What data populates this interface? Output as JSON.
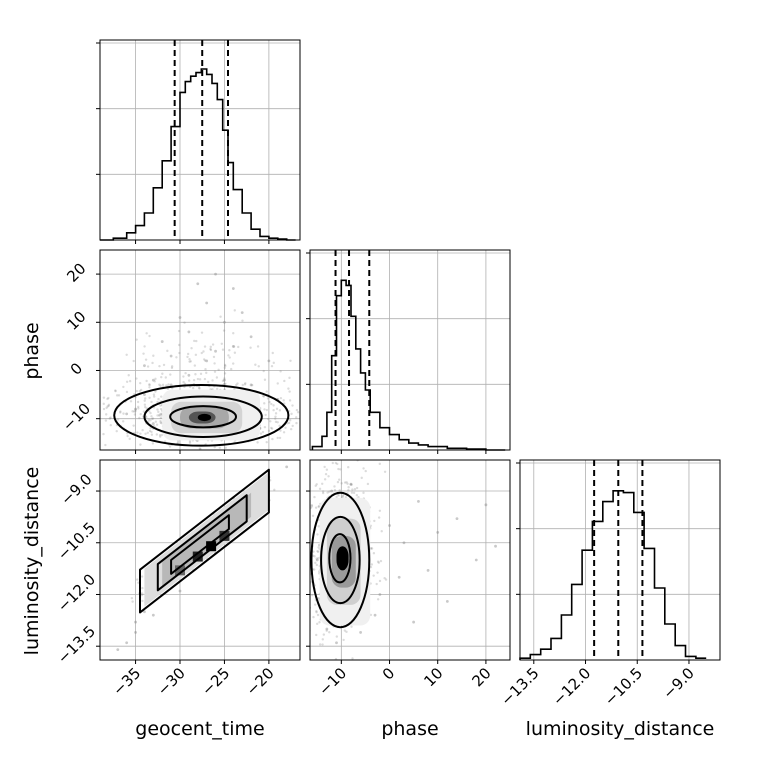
{
  "chart_data": {
    "type": "corner",
    "params": [
      "geocent_time",
      "phase",
      "luminosity_distance"
    ],
    "axis_labels": {
      "geocent_time": "geocent_time",
      "phase": "phase",
      "luminosity_distance": "luminosity_distance"
    },
    "ranges": {
      "geocent_time": [
        -39,
        -16.5
      ],
      "phase": [
        -16.5,
        25
      ],
      "luminosity_distance": [
        -13.9,
        -8.1
      ]
    },
    "ticks": {
      "geocent_time": [
        {
          "value": -35,
          "label": "−35"
        },
        {
          "value": -30,
          "label": "−30"
        },
        {
          "value": -25,
          "label": "−25"
        },
        {
          "value": -20,
          "label": "−20"
        }
      ],
      "phase": [
        {
          "value": -10,
          "label": "−10"
        },
        {
          "value": 0,
          "label": "0"
        },
        {
          "value": 10,
          "label": "10"
        },
        {
          "value": 20,
          "label": "20"
        }
      ],
      "luminosity_distance": [
        {
          "value": -13.5,
          "label": "−13.5"
        },
        {
          "value": -12.0,
          "label": "−12.0"
        },
        {
          "value": -10.5,
          "label": "−10.5"
        },
        {
          "value": -9.0,
          "label": "−9.0"
        }
      ]
    },
    "quantiles": {
      "geocent_time": [
        -30.6,
        -27.5,
        -24.6
      ],
      "phase": [
        -11.2,
        -8.4,
        -4.2
      ],
      "luminosity_distance": [
        -11.75,
        -11.05,
        -10.35
      ]
    },
    "histograms": {
      "geocent_time": {
        "bin_edges": [
          -39,
          -37.5,
          -36,
          -35,
          -34,
          -33,
          -32,
          -31,
          -30,
          -29.4,
          -28.8,
          -28.2,
          -27.6,
          -27,
          -26.4,
          -25.8,
          -25.2,
          -24.6,
          -24,
          -23,
          -22,
          -21,
          -20,
          -19,
          -18,
          -17
        ],
        "counts": [
          0.0,
          0.01,
          0.04,
          0.08,
          0.15,
          0.29,
          0.44,
          0.63,
          0.82,
          0.88,
          0.91,
          0.93,
          0.95,
          0.92,
          0.87,
          0.78,
          0.61,
          0.43,
          0.28,
          0.15,
          0.06,
          0.02,
          0.01,
          0.005,
          0.0
        ],
        "ymax": 1.0
      },
      "phase": {
        "bin_edges": [
          -16,
          -14,
          -13,
          -12,
          -11,
          -10,
          -9,
          -8,
          -7,
          -6,
          -5,
          -4,
          -2,
          0,
          2,
          4,
          6,
          8,
          12,
          16,
          20,
          24
        ],
        "counts": [
          0.02,
          0.08,
          0.22,
          0.55,
          0.9,
          0.99,
          0.96,
          0.78,
          0.59,
          0.45,
          0.35,
          0.22,
          0.13,
          0.09,
          0.06,
          0.04,
          0.03,
          0.02,
          0.01,
          0.005,
          0.0
        ],
        "ymax": 1.05
      },
      "luminosity_distance": {
        "bin_edges": [
          -13.9,
          -13.6,
          -13.3,
          -13.0,
          -12.7,
          -12.4,
          -12.1,
          -11.8,
          -11.5,
          -11.2,
          -10.9,
          -10.6,
          -10.3,
          -10.0,
          -9.7,
          -9.4,
          -9.1,
          -8.8,
          -8.5
        ],
        "counts": [
          0.01,
          0.03,
          0.06,
          0.12,
          0.25,
          0.42,
          0.61,
          0.77,
          0.88,
          0.94,
          0.93,
          0.82,
          0.62,
          0.4,
          0.2,
          0.08,
          0.02,
          0.01
        ],
        "ymax": 1.0
      }
    },
    "scatter_panels": {
      "geocent_time__phase": {
        "points": [
          [
            -34,
            -5
          ],
          [
            -33,
            -2
          ],
          [
            -35,
            -8
          ],
          [
            -31,
            3
          ],
          [
            -29,
            8
          ],
          [
            -27,
            14
          ],
          [
            -25,
            10
          ],
          [
            -24,
            5
          ],
          [
            -22,
            -3
          ],
          [
            -21,
            -12
          ],
          [
            -30,
            -13
          ],
          [
            -33,
            -11
          ],
          [
            -28,
            18
          ],
          [
            -26,
            20
          ],
          [
            -23,
            12
          ],
          [
            -20,
            2
          ],
          [
            -32,
            6
          ],
          [
            -36,
            -9
          ],
          [
            -19,
            -6
          ],
          [
            -24,
            17
          ],
          [
            -30,
            11
          ],
          [
            -27,
            2
          ],
          [
            -29,
            -1
          ],
          [
            -25,
            -2
          ],
          [
            -31,
            -3
          ],
          [
            -22,
            7
          ],
          [
            -34,
            1
          ],
          [
            -26,
            4
          ],
          [
            -28,
            -14
          ],
          [
            -23,
            -14
          ]
        ],
        "blocks": [
          {
            "x": [
              -32,
              -21
            ],
            "y": [
              -14.5,
              -4
            ],
            "shade": "#f0f0f0"
          },
          {
            "x": [
              -31,
              -23
            ],
            "y": [
              -13,
              -6.5
            ],
            "shade": "#d4d4d4"
          },
          {
            "x": [
              -30,
              -24.5
            ],
            "y": [
              -12,
              -7.5
            ],
            "shade": "#a8a8a8"
          },
          {
            "x": [
              -29,
              -26
            ],
            "y": [
              -11,
              -8.5
            ],
            "shade": "#555555"
          },
          {
            "x": [
              -28,
              -26.5
            ],
            "y": [
              -10.5,
              -9
            ],
            "shade": "#000000"
          }
        ],
        "contours": [
          {
            "cx": -27.6,
            "cy": -9.3,
            "rx": 9.8,
            "ry": 6.3
          },
          {
            "cx": -27.4,
            "cy": -9.6,
            "rx": 6.6,
            "ry": 4.2
          },
          {
            "cx": -27.4,
            "cy": -9.6,
            "rx": 3.7,
            "ry": 2.2
          }
        ]
      },
      "geocent_time__luminosity_distance": {
        "points": [
          [
            -37,
            -13.6
          ],
          [
            -36,
            -13.4
          ],
          [
            -35,
            -13.1
          ],
          [
            -34,
            -12.5
          ],
          [
            -33,
            -12.0
          ],
          [
            -32,
            -11.8
          ],
          [
            -31,
            -11.4
          ],
          [
            -29,
            -11.0
          ],
          [
            -28,
            -10.6
          ],
          [
            -27,
            -10.4
          ],
          [
            -25,
            -10.0
          ],
          [
            -24,
            -9.7
          ],
          [
            -23,
            -9.5
          ],
          [
            -22,
            -9.2
          ],
          [
            -21,
            -8.9
          ],
          [
            -20,
            -8.6
          ],
          [
            -18,
            -8.3
          ],
          [
            -30,
            -11.9
          ],
          [
            -26,
            -10.8
          ],
          [
            -24,
            -9.2
          ],
          [
            -33,
            -12.6
          ],
          [
            -22,
            -9.6
          ],
          [
            -35,
            -12.8
          ]
        ],
        "slope": 0.2,
        "intercept": -5.0,
        "band": [
          {
            "x0": -34,
            "x1": -20,
            "w": 0.55,
            "shade": "#dddddd"
          },
          {
            "x0": -32,
            "x1": -22,
            "w": 0.35,
            "shade": "#b8b8b8"
          }
        ],
        "blobs": [
          {
            "x": -28,
            "y": -10.9,
            "shade": "#222222"
          },
          {
            "x": -26.5,
            "y": -10.6,
            "shade": "#000000"
          },
          {
            "x": -25,
            "y": -10.3,
            "shade": "#333333"
          },
          {
            "x": -30,
            "y": -11.3,
            "shade": "#666666"
          }
        ],
        "contours": [
          {
            "x0": -34.5,
            "x1": -20.0,
            "w": 0.62
          },
          {
            "x0": -32.5,
            "x1": -22.5,
            "w": 0.38
          },
          {
            "x0": -31.0,
            "x1": -24.5,
            "w": 0.2
          }
        ]
      },
      "phase__luminosity_distance": {
        "points": [
          [
            -14,
            -9.5
          ],
          [
            -12,
            -9.0
          ],
          [
            -8,
            -8.8
          ],
          [
            -5,
            -9.6
          ],
          [
            0,
            -10.0
          ],
          [
            3,
            -10.5
          ],
          [
            6,
            -9.3
          ],
          [
            10,
            -10.2
          ],
          [
            14,
            -9.8
          ],
          [
            18,
            -11.0
          ],
          [
            -2,
            -12.0
          ],
          [
            2,
            -11.5
          ],
          [
            -13,
            -13.0
          ],
          [
            -11,
            -13.4
          ],
          [
            -6,
            -13.1
          ],
          [
            -3,
            -12.6
          ],
          [
            8,
            -11.3
          ],
          [
            12,
            -12.2
          ],
          [
            20,
            -9.4
          ],
          [
            22,
            -10.6
          ],
          [
            -15,
            -11.0
          ],
          [
            5,
            -12.8
          ]
        ],
        "blocks": [
          {
            "x": [
              -14.5,
              -4
            ],
            "y": [
              -12.9,
              -9.2
            ],
            "shade": "#f0f0f0"
          },
          {
            "x": [
              -13,
              -6
            ],
            "y": [
              -12.3,
              -9.8
            ],
            "shade": "#cfcfcf"
          },
          {
            "x": [
              -12,
              -7
            ],
            "y": [
              -11.8,
              -10.3
            ],
            "shade": "#9a9a9a"
          },
          {
            "x": [
              -11,
              -8.5
            ],
            "y": [
              -11.3,
              -10.6
            ],
            "shade": "#000000"
          }
        ],
        "contours": [
          {
            "cx": -10.2,
            "cy": -11.0,
            "rx": 6.0,
            "ry": 1.95
          },
          {
            "cx": -10.2,
            "cy": -11.0,
            "rx": 4.0,
            "ry": 1.25
          },
          {
            "cx": -10.3,
            "cy": -10.95,
            "rx": 2.2,
            "ry": 0.7
          }
        ]
      }
    }
  }
}
